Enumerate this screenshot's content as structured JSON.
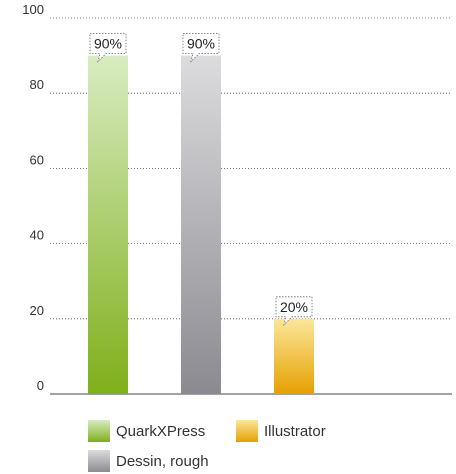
{
  "chart_data": {
    "type": "bar",
    "categories": [
      "QuarkXPress",
      "Dessin, rough",
      "Illustrator"
    ],
    "series": [
      {
        "name": "QuarkXPress",
        "values": [
          90,
          null,
          null
        ]
      },
      {
        "name": "Dessin, rough",
        "values": [
          null,
          90,
          null
        ]
      },
      {
        "name": "Illustrator",
        "values": [
          null,
          null,
          20
        ]
      }
    ],
    "values": [
      90,
      90,
      20
    ],
    "data_labels": [
      "90%",
      "90%",
      "20%"
    ],
    "ylim": [
      0,
      100
    ],
    "yticks": [
      "0",
      "20",
      "40",
      "60",
      "80",
      "100"
    ],
    "grid": "horizontal dotted",
    "legend_position": "bottom",
    "title": "",
    "xlabel": "",
    "ylabel": "",
    "colors": {
      "QuarkXPress": {
        "top": "#d9ecc2",
        "bottom": "#7faf1a"
      },
      "Dessin, rough": {
        "top": "#dcdcde",
        "bottom": "#8a8a90"
      },
      "Illustrator": {
        "top": "#fbe79a",
        "bottom": "#e6a000"
      }
    }
  },
  "legend": {
    "items": [
      {
        "label": "QuarkXPress"
      },
      {
        "label": "Illustrator"
      },
      {
        "label": "Dessin, rough"
      }
    ]
  }
}
